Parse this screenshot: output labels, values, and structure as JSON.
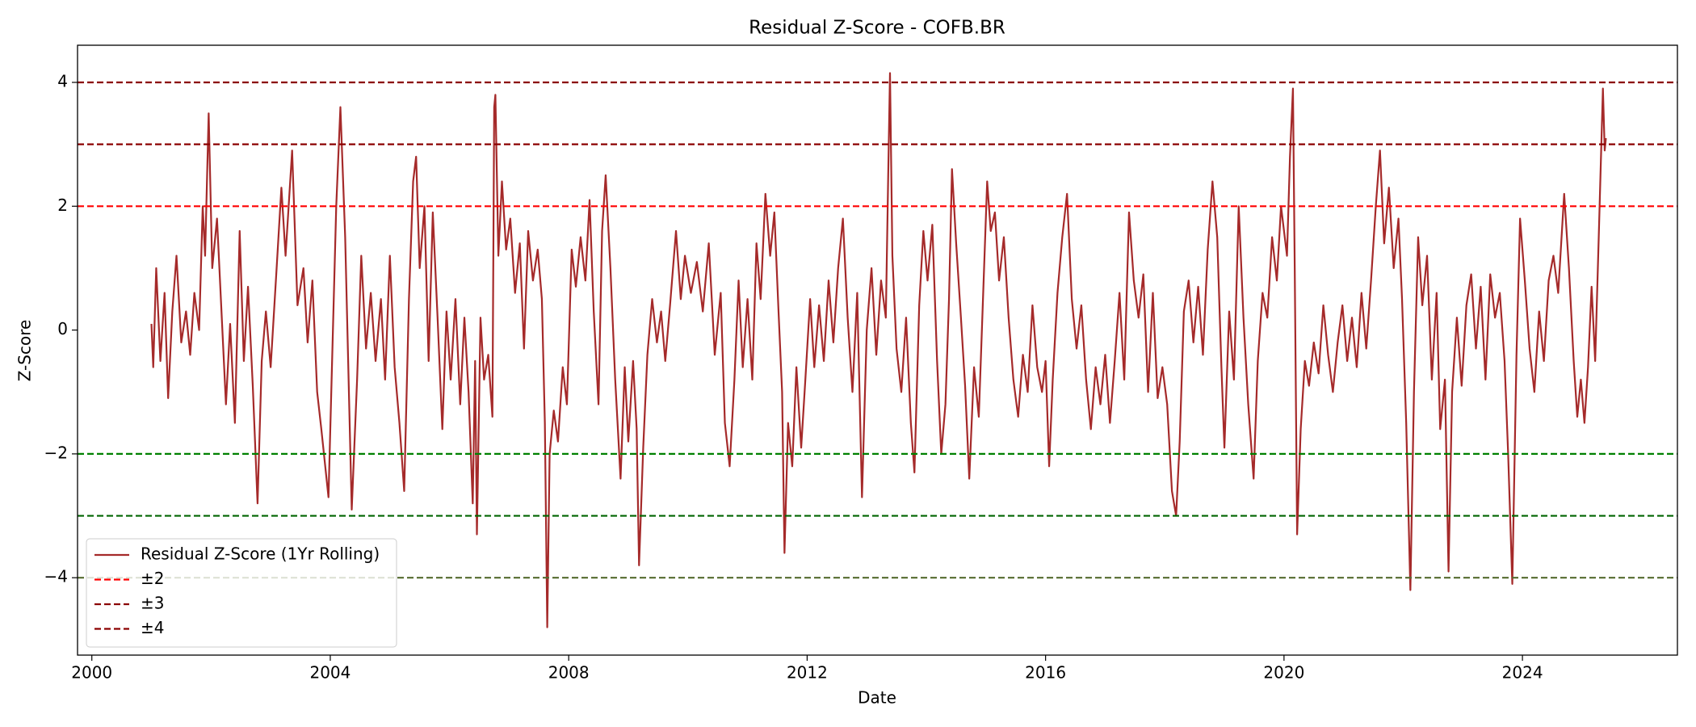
{
  "chart_data": {
    "type": "line",
    "title": "Residual Z-Score - COFB.BR",
    "x_label": "Date",
    "y_label": "Z-Score",
    "xlim": [
      1999.76,
      2026.6
    ],
    "ylim": [
      -5.25,
      4.6
    ],
    "xticks": [
      2000,
      2004,
      2008,
      2012,
      2016,
      2020,
      2024
    ],
    "yticks": [
      {
        "value": -4,
        "label": "−4"
      },
      {
        "value": -2,
        "label": "−2"
      },
      0,
      2,
      4
    ],
    "legend": "lower left",
    "series": [
      {
        "name": "Residual Z-Score (1Yr Rolling)",
        "color": "#a52a2a",
        "x": [
          2001.0,
          2001.03,
          2001.08,
          2001.15,
          2001.22,
          2001.28,
          2001.35,
          2001.42,
          2001.5,
          2001.58,
          2001.65,
          2001.72,
          2001.8,
          2001.86,
          2001.9,
          2001.96,
          2002.02,
          2002.1,
          2002.18,
          2002.25,
          2002.32,
          2002.4,
          2002.48,
          2002.55,
          2002.62,
          2002.7,
          2002.78,
          2002.85,
          2002.92,
          2003.0,
          2003.1,
          2003.18,
          2003.25,
          2003.36,
          2003.45,
          2003.55,
          2003.62,
          2003.7,
          2003.78,
          2003.85,
          2003.97,
          2004.05,
          2004.1,
          2004.17,
          2004.25,
          2004.3,
          2004.36,
          2004.45,
          2004.52,
          2004.6,
          2004.68,
          2004.76,
          2004.85,
          2004.92,
          2005.0,
          2005.08,
          2005.16,
          2005.24,
          2005.32,
          2005.39,
          2005.44,
          2005.5,
          2005.58,
          2005.65,
          2005.72,
          2005.8,
          2005.88,
          2005.95,
          2006.02,
          2006.1,
          2006.18,
          2006.25,
          2006.32,
          2006.39,
          2006.43,
          2006.46,
          2006.52,
          2006.58,
          2006.65,
          2006.72,
          2006.75,
          2006.77,
          2006.82,
          2006.88,
          2006.95,
          2007.02,
          2007.1,
          2007.18,
          2007.25,
          2007.32,
          2007.4,
          2007.48,
          2007.55,
          2007.6,
          2007.64,
          2007.68,
          2007.75,
          2007.82,
          2007.9,
          2007.97,
          2008.05,
          2008.12,
          2008.2,
          2008.28,
          2008.35,
          2008.42,
          2008.5,
          2008.56,
          2008.62,
          2008.7,
          2008.78,
          2008.87,
          2008.94,
          2009.0,
          2009.08,
          2009.14,
          2009.18,
          2009.25,
          2009.32,
          2009.4,
          2009.48,
          2009.55,
          2009.62,
          2009.7,
          2009.8,
          2009.88,
          2009.95,
          2010.05,
          2010.15,
          2010.25,
          2010.35,
          2010.45,
          2010.55,
          2010.62,
          2010.7,
          2010.78,
          2010.85,
          2010.92,
          2011.0,
          2011.08,
          2011.15,
          2011.22,
          2011.3,
          2011.38,
          2011.45,
          2011.52,
          2011.58,
          2011.62,
          2011.68,
          2011.75,
          2011.82,
          2011.9,
          2011.97,
          2012.05,
          2012.12,
          2012.2,
          2012.28,
          2012.36,
          2012.44,
          2012.52,
          2012.6,
          2012.68,
          2012.76,
          2012.84,
          2012.92,
          2013.0,
          2013.08,
          2013.16,
          2013.24,
          2013.32,
          2013.36,
          2013.39,
          2013.43,
          2013.5,
          2013.58,
          2013.66,
          2013.74,
          2013.8,
          2013.88,
          2013.95,
          2014.02,
          2014.1,
          2014.18,
          2014.25,
          2014.32,
          2014.38,
          2014.43,
          2014.5,
          2014.58,
          2014.65,
          2014.72,
          2014.8,
          2014.88,
          2014.95,
          2015.02,
          2015.08,
          2015.15,
          2015.22,
          2015.3,
          2015.38,
          2015.46,
          2015.54,
          2015.62,
          2015.7,
          2015.78,
          2015.86,
          2015.94,
          2016.0,
          2016.06,
          2016.12,
          2016.2,
          2016.28,
          2016.36,
          2016.44,
          2016.52,
          2016.6,
          2016.68,
          2016.76,
          2016.84,
          2016.92,
          2017.0,
          2017.08,
          2017.16,
          2017.24,
          2017.32,
          2017.4,
          2017.48,
          2017.56,
          2017.64,
          2017.72,
          2017.8,
          2017.88,
          2017.96,
          2018.04,
          2018.12,
          2018.19,
          2018.25,
          2018.32,
          2018.4,
          2018.48,
          2018.56,
          2018.64,
          2018.72,
          2018.8,
          2018.88,
          2018.95,
          2019.0,
          2019.08,
          2019.16,
          2019.24,
          2019.32,
          2019.4,
          2019.49,
          2019.56,
          2019.64,
          2019.72,
          2019.8,
          2019.88,
          2019.95,
          2020.05,
          2020.1,
          2020.15,
          2020.18,
          2020.22,
          2020.28,
          2020.35,
          2020.42,
          2020.5,
          2020.58,
          2020.66,
          2020.74,
          2020.82,
          2020.9,
          2020.98,
          2021.06,
          2021.14,
          2021.22,
          2021.3,
          2021.38,
          2021.46,
          2021.54,
          2021.61,
          2021.68,
          2021.76,
          2021.84,
          2021.92,
          2021.98,
          2022.05,
          2022.12,
          2022.18,
          2022.25,
          2022.32,
          2022.4,
          2022.48,
          2022.56,
          2022.62,
          2022.7,
          2022.76,
          2022.82,
          2022.9,
          2022.98,
          2023.06,
          2023.14,
          2023.22,
          2023.3,
          2023.38,
          2023.46,
          2023.54,
          2023.62,
          2023.7,
          2023.76,
          2023.83,
          2023.9,
          2023.96,
          2024.04,
          2024.12,
          2024.2,
          2024.28,
          2024.36,
          2024.44,
          2024.52,
          2024.6,
          2024.7,
          2024.78,
          2024.86,
          2024.92,
          2024.98,
          2025.04,
          2025.1,
          2025.16,
          2025.22,
          2025.28,
          2025.35,
          2025.38,
          2025.4
        ],
        "values": [
          0.1,
          -0.6,
          1.0,
          -0.5,
          0.6,
          -1.1,
          0.3,
          1.2,
          -0.2,
          0.3,
          -0.4,
          0.6,
          0.0,
          2.0,
          1.2,
          3.5,
          1.0,
          1.8,
          0.2,
          -1.2,
          0.1,
          -1.5,
          1.6,
          -0.5,
          0.7,
          -0.9,
          -2.8,
          -0.5,
          0.3,
          -0.6,
          1.0,
          2.3,
          1.2,
          2.9,
          0.4,
          1.0,
          -0.2,
          0.8,
          -1.0,
          -1.6,
          -2.7,
          0.2,
          2.0,
          3.6,
          1.5,
          -0.5,
          -2.9,
          -0.8,
          1.2,
          -0.3,
          0.6,
          -0.5,
          0.5,
          -0.8,
          1.2,
          -0.6,
          -1.5,
          -2.6,
          0.5,
          2.4,
          2.8,
          1.0,
          2.0,
          -0.5,
          1.9,
          0.2,
          -1.6,
          0.3,
          -0.8,
          0.5,
          -1.2,
          0.2,
          -1.0,
          -2.8,
          -0.5,
          -3.3,
          0.2,
          -0.8,
          -0.4,
          -1.4,
          3.6,
          3.8,
          1.2,
          2.4,
          1.3,
          1.8,
          0.6,
          1.4,
          -0.3,
          1.6,
          0.8,
          1.3,
          0.5,
          -1.5,
          -4.8,
          -2.0,
          -1.3,
          -1.8,
          -0.6,
          -1.2,
          1.3,
          0.7,
          1.5,
          0.8,
          2.1,
          0.3,
          -1.2,
          1.6,
          2.5,
          1.0,
          -0.8,
          -2.4,
          -0.6,
          -1.8,
          -0.5,
          -1.6,
          -3.8,
          -1.9,
          -0.4,
          0.5,
          -0.2,
          0.3,
          -0.5,
          0.4,
          1.6,
          0.5,
          1.2,
          0.6,
          1.1,
          0.3,
          1.4,
          -0.4,
          0.6,
          -1.5,
          -2.2,
          -0.8,
          0.8,
          -0.6,
          0.5,
          -0.8,
          1.4,
          0.5,
          2.2,
          1.2,
          1.9,
          0.3,
          -1.0,
          -3.6,
          -1.5,
          -2.2,
          -0.6,
          -1.9,
          -0.8,
          0.5,
          -0.6,
          0.4,
          -0.5,
          0.8,
          -0.2,
          1.0,
          1.8,
          0.2,
          -1.0,
          0.6,
          -2.7,
          0.0,
          1.0,
          -0.4,
          0.8,
          0.2,
          2.5,
          4.15,
          1.2,
          -0.3,
          -1.0,
          0.2,
          -1.5,
          -2.3,
          0.4,
          1.6,
          0.8,
          1.7,
          -0.5,
          -2.0,
          -1.2,
          0.5,
          2.6,
          1.4,
          0.2,
          -0.9,
          -2.4,
          -0.6,
          -1.4,
          0.5,
          2.4,
          1.6,
          1.9,
          0.8,
          1.5,
          0.2,
          -0.8,
          -1.4,
          -0.4,
          -1.0,
          0.4,
          -0.6,
          -1.0,
          -0.5,
          -2.2,
          -0.8,
          0.6,
          1.5,
          2.2,
          0.5,
          -0.3,
          0.4,
          -0.8,
          -1.6,
          -0.6,
          -1.2,
          -0.4,
          -1.5,
          -0.5,
          0.6,
          -0.8,
          1.9,
          0.8,
          0.2,
          0.9,
          -1.0,
          0.6,
          -1.1,
          -0.6,
          -1.2,
          -2.6,
          -3.0,
          -1.8,
          0.3,
          0.8,
          -0.2,
          0.7,
          -0.4,
          1.3,
          2.4,
          1.5,
          -0.6,
          -1.9,
          0.3,
          -0.8,
          2.0,
          0.2,
          -1.2,
          -2.4,
          -0.5,
          0.6,
          0.2,
          1.5,
          0.8,
          2.0,
          1.2,
          2.8,
          3.9,
          1.0,
          -3.3,
          -1.6,
          -0.5,
          -0.9,
          -0.2,
          -0.7,
          0.4,
          -0.4,
          -1.0,
          -0.2,
          0.4,
          -0.5,
          0.2,
          -0.6,
          0.6,
          -0.3,
          0.8,
          2.0,
          2.9,
          1.4,
          2.3,
          1.0,
          1.8,
          0.5,
          -1.5,
          -4.2,
          -1.0,
          1.5,
          0.4,
          1.2,
          -0.8,
          0.6,
          -1.6,
          -0.8,
          -3.9,
          -1.0,
          0.2,
          -0.9,
          0.4,
          0.9,
          -0.3,
          0.7,
          -0.8,
          0.9,
          0.2,
          0.6,
          -0.5,
          -2.0,
          -4.1,
          -0.4,
          1.8,
          0.8,
          -0.3,
          -1.0,
          0.3,
          -0.5,
          0.8,
          1.2,
          0.6,
          2.2,
          1.0,
          -0.5,
          -1.4,
          -0.8,
          -1.5,
          -0.6,
          0.7,
          -0.5,
          1.5,
          3.9,
          2.9,
          3.1
        ]
      }
    ],
    "reference_lines": [
      {
        "name": "±2",
        "values": [
          2,
          -2
        ],
        "colors": [
          "#ff0000",
          "#008000"
        ]
      },
      {
        "name": "±3",
        "values": [
          3,
          -3
        ],
        "colors": [
          "#8b0000",
          "#006400"
        ]
      },
      {
        "name": "±4",
        "values": [
          4,
          -4
        ],
        "colors": [
          "#8b0000",
          "#556b2f"
        ]
      }
    ]
  }
}
